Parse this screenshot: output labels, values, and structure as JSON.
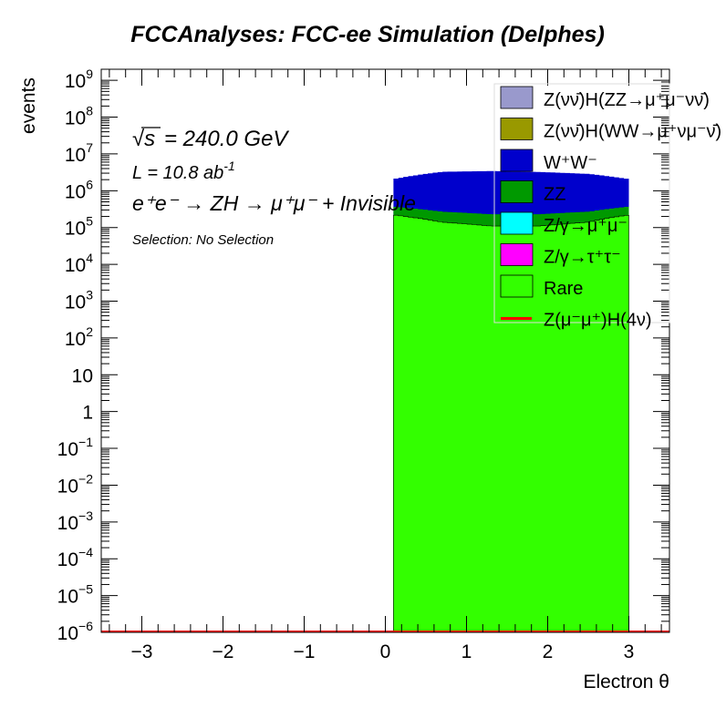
{
  "chart_data": {
    "type": "area",
    "title": "FCCAnalyses: FCC-ee Simulation (Delphes)",
    "xlabel": "Electron θ",
    "ylabel": "events",
    "xlim": [
      -3.5,
      3.5
    ],
    "ylim": [
      1e-06,
      2000000000.0
    ],
    "yscale": "log",
    "stacked": true,
    "x_ticks": [
      "−3",
      "−2",
      "−1",
      "0",
      "1",
      "2",
      "3"
    ],
    "y_ticks": [
      {
        "value": 1e-06,
        "base": "10",
        "exp": "−6"
      },
      {
        "value": 1e-05,
        "base": "10",
        "exp": "−5"
      },
      {
        "value": 0.0001,
        "base": "10",
        "exp": "−4"
      },
      {
        "value": 0.001,
        "base": "10",
        "exp": "−3"
      },
      {
        "value": 0.01,
        "base": "10",
        "exp": "−2"
      },
      {
        "value": 0.1,
        "base": "10",
        "exp": "−1"
      },
      {
        "value": 1,
        "base": "1",
        "exp": ""
      },
      {
        "value": 10,
        "base": "10",
        "exp": ""
      },
      {
        "value": 100,
        "base": "10",
        "exp": "2"
      },
      {
        "value": 1000,
        "base": "10",
        "exp": "3"
      },
      {
        "value": 10000,
        "base": "10",
        "exp": "4"
      },
      {
        "value": 100000,
        "base": "10",
        "exp": "5"
      },
      {
        "value": 1000000,
        "base": "10",
        "exp": "6"
      },
      {
        "value": 10000000,
        "base": "10",
        "exp": "7"
      },
      {
        "value": 100000000,
        "base": "10",
        "exp": "8"
      },
      {
        "value": 1000000000,
        "base": "10",
        "exp": "9"
      }
    ],
    "annotations": {
      "sqrt_s": "= 240.0 GeV",
      "lumi": "L = 10.8 ab",
      "lumi_exp": "-1",
      "process": "e⁺e⁻ → ZH → μ⁺μ⁻ + Invisible",
      "selection": "Selection: No Selection"
    },
    "x": [
      0.1,
      0.7,
      1.3,
      1.9,
      2.5,
      3.0
    ],
    "series": [
      {
        "name": "Rare",
        "color": "#33ff00",
        "values": [
          220000,
          140000,
          110000,
          110000,
          140000,
          220000
        ]
      },
      {
        "name": "Z/γ→τ⁺τ⁻",
        "color": "#ff00ff",
        "values": [
          0,
          0,
          0,
          0,
          0,
          0
        ]
      },
      {
        "name": "Z/γ→μ⁺μ⁻",
        "color": "#00ffff",
        "values": [
          0,
          0,
          0,
          0,
          0,
          0
        ]
      },
      {
        "name": "ZZ",
        "color": "#009900",
        "values": [
          150000,
          130000,
          120000,
          120000,
          130000,
          150000
        ]
      },
      {
        "name": "W⁺W⁻",
        "color": "#0000cc",
        "values": [
          1700000,
          3000000,
          3200000,
          3000000,
          2600000,
          1700000
        ]
      },
      {
        "name": "Z(νν̄)H(WW→μ⁺νμ⁻ν̄)",
        "color": "#999900",
        "values": [
          0,
          0,
          0,
          0,
          0,
          0
        ]
      },
      {
        "name": "Z(νν̄)H(ZZ→μ⁺μ⁻νν̄)",
        "color": "#9999cc",
        "values": [
          0,
          0,
          0,
          0,
          0,
          0
        ]
      }
    ],
    "signal": {
      "name": "Z(μ⁻μ⁺)H(4ν)",
      "color": "#ff0000",
      "values": [
        0,
        0,
        0,
        0,
        0,
        0
      ]
    },
    "legend": {
      "position": "top-right",
      "entries": [
        {
          "label": "Z(νν̄)H(ZZ→μ⁺μ⁻νν̄)",
          "color": "#9999cc",
          "kind": "box"
        },
        {
          "label": "Z(νν̄)H(WW→μ⁺νμ⁻ν̄)",
          "color": "#999900",
          "kind": "box"
        },
        {
          "label": "W⁺W⁻",
          "color": "#0000cc",
          "kind": "box"
        },
        {
          "label": "ZZ",
          "color": "#009900",
          "kind": "box"
        },
        {
          "label": "Z/γ→μ⁺μ⁻",
          "color": "#00ffff",
          "kind": "box"
        },
        {
          "label": "Z/γ→τ⁺τ⁻",
          "color": "#ff00ff",
          "kind": "box"
        },
        {
          "label": "Rare",
          "color": "#33ff00",
          "kind": "box"
        },
        {
          "label": "Z(μ⁻μ⁺)H(4ν)",
          "color": "#ff0000",
          "kind": "line"
        }
      ]
    }
  }
}
